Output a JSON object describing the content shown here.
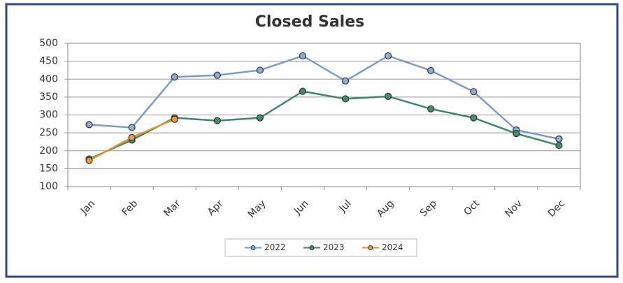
{
  "chart_data": {
    "type": "line",
    "title": "Closed Sales",
    "categories": [
      "Jan",
      "Feb",
      "Mar",
      "Apr",
      "May",
      "Jun",
      "Jul",
      "Aug",
      "Sep",
      "Oct",
      "Nov",
      "Dec"
    ],
    "series": [
      {
        "name": "2022",
        "color": "#7b9ccb",
        "marker": "#8eaad6",
        "values": [
          273,
          265,
          406,
          411,
          425,
          465,
          395,
          465,
          424,
          365,
          258,
          233
        ]
      },
      {
        "name": "2023",
        "color": "#3b8a66",
        "marker": "#3f8f67",
        "values": [
          177,
          230,
          292,
          284,
          292,
          366,
          345,
          352,
          317,
          292,
          248,
          215
        ]
      },
      {
        "name": "2024",
        "color": "#e8912c",
        "marker": "#ee9a3a",
        "values": [
          173,
          237,
          288,
          null,
          null,
          null,
          null,
          null,
          null,
          null,
          null,
          null
        ]
      }
    ],
    "ylim": [
      100,
      500
    ],
    "yticks": [
      100,
      150,
      200,
      250,
      300,
      350,
      400,
      450,
      500
    ],
    "grid": true,
    "legend": "bottom"
  }
}
